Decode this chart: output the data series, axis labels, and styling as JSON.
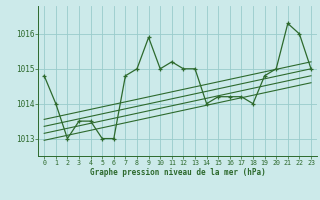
{
  "title": "Graphe pression niveau de la mer (hPa)",
  "x_values": [
    0,
    1,
    2,
    3,
    4,
    5,
    6,
    7,
    8,
    9,
    10,
    11,
    12,
    13,
    14,
    15,
    16,
    17,
    18,
    19,
    20,
    21,
    22,
    23
  ],
  "y_values": [
    1014.8,
    1014.0,
    1013.0,
    1013.5,
    1013.5,
    1013.0,
    1013.0,
    1014.8,
    1015.0,
    1015.9,
    1015.0,
    1015.2,
    1015.0,
    1015.0,
    1014.0,
    1014.2,
    1014.2,
    1014.2,
    1014.0,
    1014.8,
    1015.0,
    1016.3,
    1016.0,
    1015.0
  ],
  "xlim": [
    -0.5,
    23.5
  ],
  "ylim": [
    1012.5,
    1016.8
  ],
  "yticks": [
    1013,
    1014,
    1015,
    1016
  ],
  "xticks": [
    0,
    1,
    2,
    3,
    4,
    5,
    6,
    7,
    8,
    9,
    10,
    11,
    12,
    13,
    14,
    15,
    16,
    17,
    18,
    19,
    20,
    21,
    22,
    23
  ],
  "line_color": "#2d6a2d",
  "marker_color": "#2d6a2d",
  "bg_color": "#cceaea",
  "grid_color": "#99cccc",
  "axis_color": "#2d6a2d",
  "text_color": "#2d6a2d",
  "trend_lines": [
    {
      "x0": 0,
      "y0": 1013.55,
      "x1": 23,
      "y1": 1015.2
    },
    {
      "x0": 0,
      "y0": 1013.35,
      "x1": 23,
      "y1": 1015.0
    },
    {
      "x0": 0,
      "y0": 1013.15,
      "x1": 23,
      "y1": 1014.8
    },
    {
      "x0": 0,
      "y0": 1012.95,
      "x1": 23,
      "y1": 1014.6
    }
  ]
}
